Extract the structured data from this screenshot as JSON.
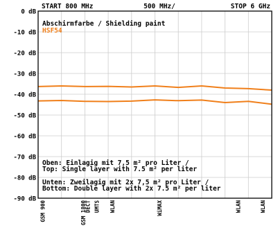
{
  "chart_data": {
    "type": "line",
    "header": {
      "start": "START 800 MHz",
      "center": "500 MHz/",
      "stop": "STOP 6 GHz"
    },
    "title": "Abschirmfarbe / Shielding paint",
    "subtitle": "HSF54",
    "y_ticks": [
      "0 dB",
      "-10 dB",
      "-20 dB",
      "-30 dB",
      "-40 dB",
      "-50 dB",
      "-60 dB",
      "-70 dB",
      "-80 dB",
      "-90 dB"
    ],
    "ylim": [
      -90,
      0
    ],
    "xlim_mhz": [
      800,
      6000
    ],
    "grid": true,
    "x": [
      800,
      1320,
      1840,
      2360,
      2880,
      3400,
      3920,
      4440,
      4960,
      5480,
      6000
    ],
    "series": [
      {
        "values": [
          -36.3,
          -36.0,
          -36.3,
          -36.2,
          -36.5,
          -36.0,
          -36.7,
          -36.0,
          -37.0,
          -37.3,
          -38.0
        ],
        "color": "#f07f1a"
      },
      {
        "values": [
          -43.2,
          -43.0,
          -43.4,
          -43.5,
          -43.3,
          -42.7,
          -43.1,
          -42.8,
          -44.0,
          -43.4,
          -44.8
        ],
        "color": "#f07f1a"
      }
    ],
    "annotations": {
      "top_line1": "Oben: Einlagig mit 7,5 m² pro Liter /",
      "top_line2": "Top: Single layer with 7.5 m² per liter",
      "bottom_line1": "Unten: Zweilagig mit 2x 7,5 m² pro Liter /",
      "bottom_line2": "Bottom: Double layer with 2x 7.5 m² per liter"
    },
    "bands": [
      {
        "label": "GSM 900",
        "mhz": 900
      },
      {
        "label": "GSM 1800",
        "mhz": 1800
      },
      {
        "label": "DECT",
        "mhz": 1900
      },
      {
        "label": "UMTS",
        "mhz": 2100
      },
      {
        "label": "WLAN",
        "mhz": 2450
      },
      {
        "label": "WiMAX",
        "mhz": 3500
      },
      {
        "label": "WLAN",
        "mhz": 5250
      },
      {
        "label": "WLAN",
        "mhz": 5800
      }
    ],
    "colors": {
      "trace": "#f07f1a",
      "grid": "#cccccc",
      "frame": "#000000",
      "text": "#000000"
    }
  }
}
